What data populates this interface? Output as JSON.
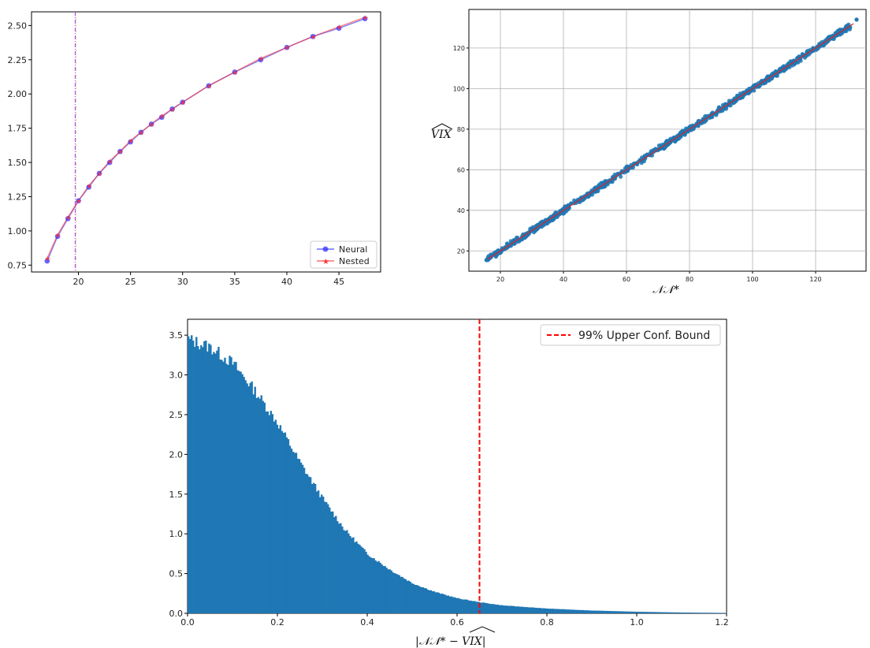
{
  "chart_data": [
    {
      "type": "line",
      "title": "",
      "xlabel": "",
      "ylabel": "",
      "xlim": [
        15.5,
        49
      ],
      "ylim": [
        0.7,
        2.6
      ],
      "x_ticks": [
        "20",
        "25",
        "30",
        "35",
        "40",
        "45"
      ],
      "y_ticks": [
        "0.75",
        "1.00",
        "1.25",
        "1.50",
        "1.75",
        "2.00",
        "2.25",
        "2.50"
      ],
      "vline_x": 19.7,
      "legend_position": "bottom-right",
      "x": [
        17,
        18,
        19,
        20,
        21,
        22,
        23,
        24,
        25,
        26,
        27,
        28,
        29,
        30,
        32.5,
        35,
        37.5,
        40,
        42.5,
        45,
        47.5
      ],
      "series": [
        {
          "name": "Neural",
          "color": "#3333ff",
          "values": [
            0.78,
            0.96,
            1.09,
            1.22,
            1.32,
            1.42,
            1.5,
            1.58,
            1.65,
            1.72,
            1.78,
            1.83,
            1.89,
            1.94,
            2.06,
            2.16,
            2.25,
            2.34,
            2.42,
            2.48,
            2.55
          ]
        },
        {
          "name": "Nested",
          "color": "#ff3333",
          "values": [
            0.8,
            0.97,
            1.1,
            1.22,
            1.33,
            1.42,
            1.51,
            1.58,
            1.66,
            1.72,
            1.78,
            1.84,
            1.89,
            1.94,
            2.06,
            2.16,
            2.26,
            2.34,
            2.42,
            2.49,
            2.56
          ]
        }
      ]
    },
    {
      "type": "scatter",
      "title": "",
      "xlabel": "𝒩𝒩*",
      "ylabel": "VIX",
      "xlim": [
        10,
        136
      ],
      "ylim": [
        10,
        139
      ],
      "x_ticks": [
        "20",
        "40",
        "60",
        "80",
        "100",
        "120"
      ],
      "y_ticks": [
        "20",
        "40",
        "60",
        "80",
        "100",
        "120"
      ],
      "grid": true,
      "point_color": "#1f77b4",
      "fit_line_color": "#d62728",
      "fit_line": {
        "x": [
          16,
          132
        ],
        "y": [
          16,
          132
        ]
      },
      "x_range_points": [
        15.5,
        133
      ]
    },
    {
      "type": "bar",
      "title": "",
      "xlabel": "|𝒩𝒩* − VIX|",
      "ylabel": "",
      "xlim": [
        0,
        1.2
      ],
      "ylim": [
        0,
        3.7
      ],
      "x_ticks": [
        "0.0",
        "0.2",
        "0.4",
        "0.6",
        "0.8",
        "1.0",
        "1.2"
      ],
      "y_ticks": [
        "0.0",
        "0.5",
        "1.0",
        "1.5",
        "2.0",
        "2.5",
        "3.0",
        "3.5"
      ],
      "bar_color": "#1f77b4",
      "vline_x": 0.65,
      "vline_color": "#ff0000",
      "legend_position": "top-right",
      "legend": "99% Upper Conf. Bound",
      "density_profile": {
        "x": [
          0,
          0.05,
          0.1,
          0.15,
          0.2,
          0.25,
          0.3,
          0.35,
          0.4,
          0.45,
          0.5,
          0.55,
          0.6,
          0.65,
          0.7,
          0.8,
          0.9,
          1.0,
          1.1,
          1.2
        ],
        "y": [
          3.45,
          3.35,
          3.15,
          2.8,
          2.4,
          1.9,
          1.45,
          1.05,
          0.75,
          0.55,
          0.38,
          0.27,
          0.19,
          0.14,
          0.1,
          0.06,
          0.035,
          0.02,
          0.01,
          0.005
        ]
      }
    }
  ]
}
